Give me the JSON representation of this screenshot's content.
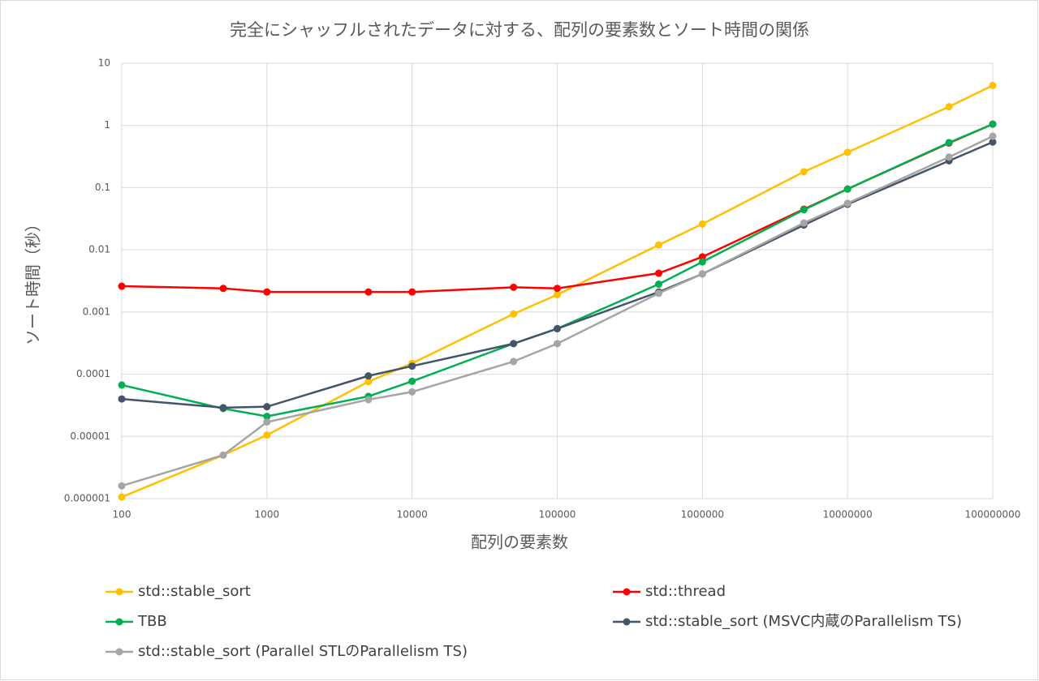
{
  "chart_data": {
    "type": "line",
    "title": "完全にシャッフルされたデータに対する、配列の要素数とソート時間の関係",
    "xlabel": "配列の要素数",
    "ylabel": "ソート時間（秒）",
    "xscale": "log",
    "yscale": "log",
    "grid": true,
    "legend": "bottom",
    "x": [
      100,
      500,
      1000,
      5000,
      10000,
      50000,
      100000,
      500000,
      1000000,
      5000000,
      10000000,
      50000000,
      100000000
    ],
    "xlim": [
      100,
      100000000
    ],
    "xticks": [
      100,
      1000,
      10000,
      100000,
      1000000,
      10000000,
      100000000
    ],
    "ylim": [
      1e-06,
      10
    ],
    "yticks": [
      1e-06,
      1e-05,
      0.0001,
      0.001,
      0.01,
      0.1,
      1,
      10
    ],
    "series": [
      {
        "name": "std::stable_sort",
        "color": "#ffc000",
        "values": [
          1.06e-06,
          5e-06,
          1.05e-05,
          7.6e-05,
          0.00015,
          0.00093,
          0.0019,
          0.012,
          0.026,
          0.18,
          0.37,
          2.0,
          4.4
        ]
      },
      {
        "name": "std::thread",
        "color": "#ff0000",
        "values": [
          0.0026,
          0.0024,
          0.0021,
          0.0021,
          0.0021,
          0.0025,
          0.0024,
          0.0042,
          0.0077,
          0.045,
          0.095,
          0.52,
          1.05
        ]
      },
      {
        "name": "TBB",
        "color": "#00b050",
        "values": [
          6.7e-05,
          2.8e-05,
          2.1e-05,
          4.4e-05,
          7.7e-05,
          0.00031,
          0.00054,
          0.0028,
          0.0064,
          0.044,
          0.095,
          0.53,
          1.05
        ]
      },
      {
        "name": "std::stable_sort (MSVC内蔵のParallelism TS)",
        "color": "#44546a",
        "values": [
          4e-05,
          2.9e-05,
          3e-05,
          9.4e-05,
          0.000135,
          0.00031,
          0.00054,
          0.0021,
          0.0041,
          0.025,
          0.054,
          0.27,
          0.54
        ]
      },
      {
        "name": "std::stable_sort (Parallel STLのParallelism TS)",
        "color": "#a5a5a5",
        "values": [
          1.6e-06,
          5e-06,
          1.7e-05,
          3.9e-05,
          5.2e-05,
          0.00016,
          0.00031,
          0.002,
          0.0041,
          0.027,
          0.056,
          0.31,
          0.67
        ]
      }
    ]
  }
}
